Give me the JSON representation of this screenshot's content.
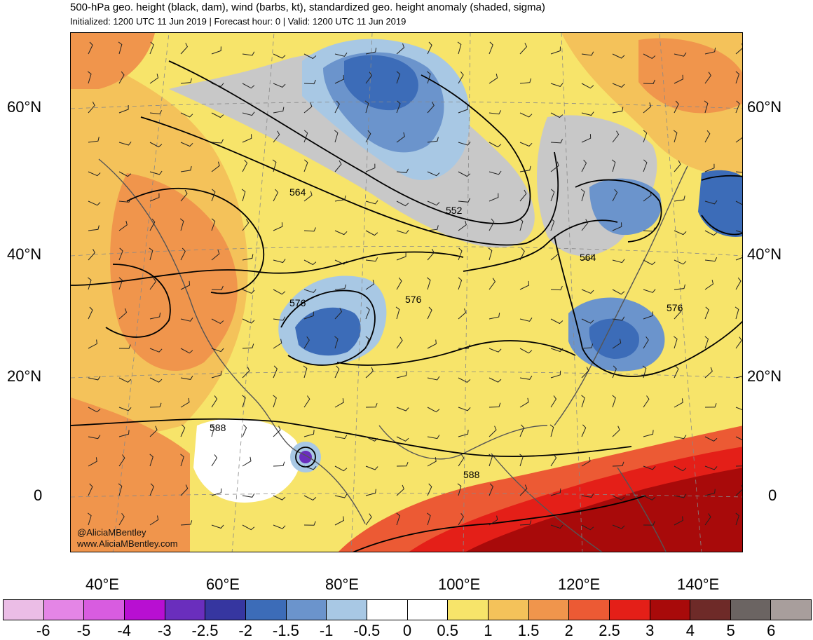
{
  "header": {
    "title": "500-hPa geo. height (black, dam), wind (barbs, kt), standardized geo. height anomaly (shaded, sigma)",
    "subtitle": "Initialized: 1200 UTC 11 Jun 2019 | Forecast hour: 0 | Valid: 1200 UTC 11 Jun 2019"
  },
  "axes": {
    "lat_labels": [
      "60°N",
      "40°N",
      "20°N",
      "0"
    ],
    "lon_labels": [
      "40°E",
      "60°E",
      "80°E",
      "100°E",
      "120°E",
      "140°E"
    ]
  },
  "contour_labels": [
    {
      "text": "564"
    },
    {
      "text": "552"
    },
    {
      "text": "564"
    },
    {
      "text": "576"
    },
    {
      "text": "576"
    },
    {
      "text": "576"
    },
    {
      "text": "588"
    },
    {
      "text": "588"
    }
  ],
  "credit": {
    "handle": "@AliciaMBentley",
    "website": "www.AliciaMBentley.com"
  },
  "colorbar": {
    "colors": [
      "#ebbde6",
      "#e485e6",
      "#d85ce0",
      "#b80fd2",
      "#6a2ebd",
      "#3636a0",
      "#3c6cb8",
      "#6b94cc",
      "#a8c8e4",
      "#ffffff",
      "#ffffff",
      "#f7e46a",
      "#f4c25a",
      "#f0954c",
      "#ec5a34",
      "#e41f18",
      "#a80a0a",
      "#6e2a28",
      "#6b6462",
      "#a89e9c"
    ],
    "labels": [
      "-6",
      "-5",
      "-4",
      "-3",
      "-2.5",
      "-2",
      "-1.5",
      "-1",
      "-0.5",
      "0",
      "0.5",
      "1",
      "1.5",
      "2",
      "2.5",
      "3",
      "4",
      "5",
      "6"
    ]
  },
  "map_colors": {
    "ocean_warm": "#f4c25a",
    "gray_band": "#c8c8c8",
    "coast": "#555555"
  }
}
